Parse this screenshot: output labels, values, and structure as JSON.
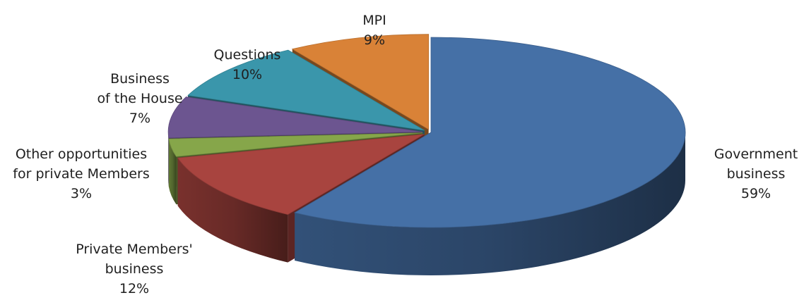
{
  "chart_data": {
    "type": "pie",
    "title": "",
    "style": "3d-exploded",
    "slices": [
      {
        "name": "Government business",
        "label_lines": [
          "Government",
          "business"
        ],
        "pct_label": "59%",
        "value": 59,
        "color": "#4570a6"
      },
      {
        "name": "Private Members' business",
        "label_lines": [
          "Private Members'",
          "business"
        ],
        "pct_label": "12%",
        "value": 12,
        "color": "#a8443f"
      },
      {
        "name": "Other opportunities for private Members",
        "label_lines": [
          "Other opportunities",
          "for private Members"
        ],
        "pct_label": "3%",
        "value": 3,
        "color": "#86a64a"
      },
      {
        "name": "Business of the House",
        "label_lines": [
          "Business",
          "of the House"
        ],
        "pct_label": "7%",
        "value": 7,
        "color": "#6c5590"
      },
      {
        "name": "Questions",
        "label_lines": [
          "Questions"
        ],
        "pct_label": "10%",
        "value": 10,
        "color": "#3a96ab"
      },
      {
        "name": "MPI",
        "label_lines": [
          "MPI"
        ],
        "pct_label": "9%",
        "value": 9,
        "color": "#d98237"
      }
    ]
  }
}
